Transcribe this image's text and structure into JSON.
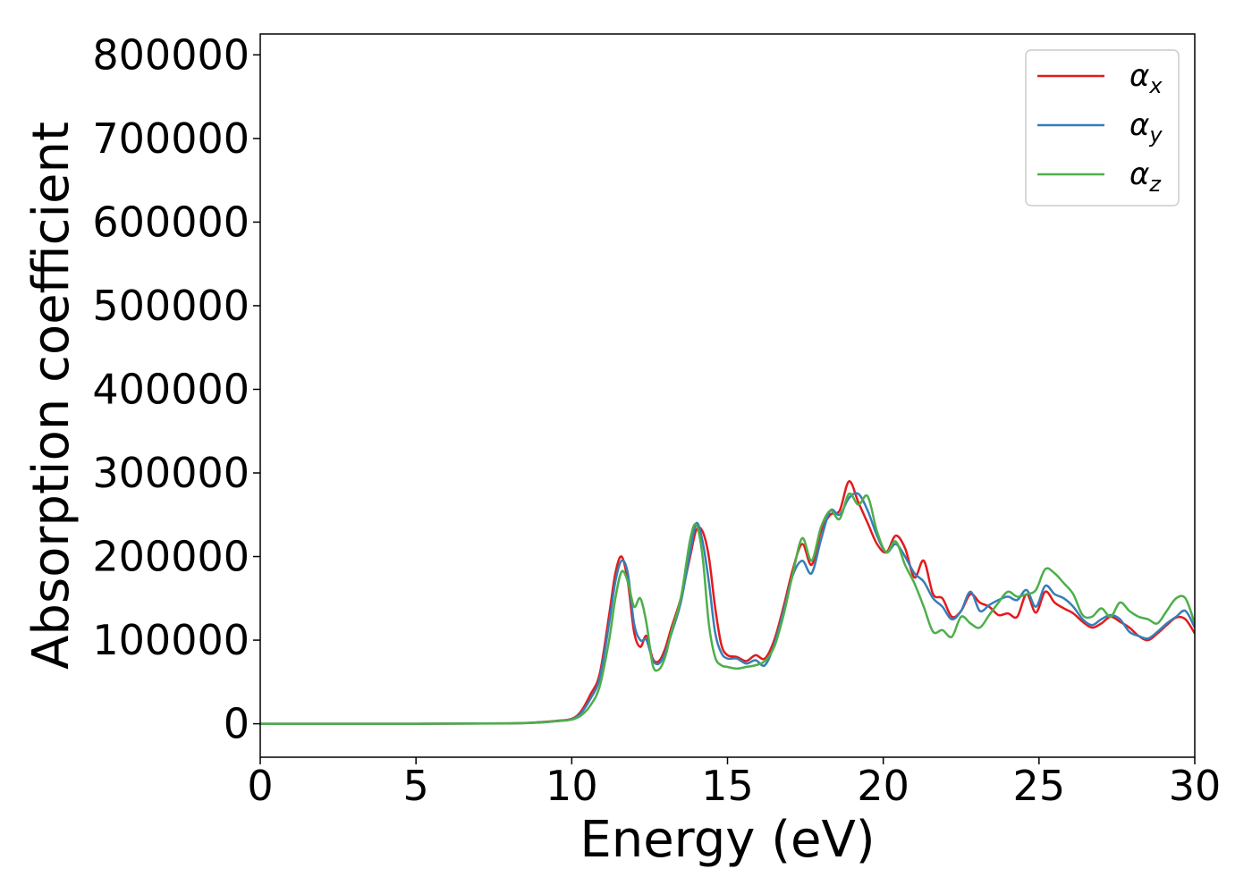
{
  "chart_data": {
    "type": "line",
    "xlabel": "Energy (eV)",
    "ylabel": "Absorption coefficient",
    "xlim": [
      0,
      30
    ],
    "ylim": [
      -40000,
      825000
    ],
    "xticks": [
      0,
      5,
      10,
      15,
      20,
      25,
      30
    ],
    "yticks": [
      0,
      100000,
      200000,
      300000,
      400000,
      500000,
      600000,
      700000,
      800000
    ],
    "legend": {
      "position": "top-right"
    },
    "grid": false,
    "series": [
      {
        "name": "αx",
        "symbol": "α",
        "subscript": "x",
        "color": "#e41a1c",
        "x": [
          0,
          5,
          8,
          9,
          9.5,
          10,
          10.3,
          10.6,
          10.9,
          11.2,
          11.4,
          11.6,
          11.8,
          12.0,
          12.2,
          12.4,
          12.6,
          12.8,
          13.0,
          13.2,
          13.5,
          13.8,
          14.0,
          14.2,
          14.4,
          14.6,
          14.8,
          15.0,
          15.3,
          15.6,
          15.9,
          16.2,
          16.5,
          16.8,
          17.1,
          17.4,
          17.7,
          18.0,
          18.3,
          18.6,
          18.9,
          19.2,
          19.5,
          19.8,
          20.1,
          20.4,
          20.7,
          21.0,
          21.3,
          21.6,
          21.9,
          22.2,
          22.5,
          22.8,
          23.1,
          23.4,
          23.7,
          24.0,
          24.3,
          24.6,
          24.9,
          25.2,
          25.5,
          25.8,
          26.1,
          26.4,
          26.7,
          27.0,
          27.3,
          27.6,
          27.9,
          28.2,
          28.5,
          28.8,
          29.1,
          29.4,
          29.7,
          30.0
        ],
        "values": [
          0,
          0,
          500,
          2000,
          3500,
          6000,
          15000,
          35000,
          60000,
          130000,
          180000,
          200000,
          170000,
          110000,
          92000,
          105000,
          78000,
          75000,
          90000,
          115000,
          150000,
          200000,
          232000,
          230000,
          200000,
          140000,
          95000,
          82000,
          80000,
          75000,
          82000,
          78000,
          100000,
          140000,
          185000,
          215000,
          190000,
          230000,
          250000,
          255000,
          290000,
          265000,
          240000,
          215000,
          205000,
          225000,
          210000,
          175000,
          195000,
          155000,
          150000,
          128000,
          135000,
          155000,
          145000,
          140000,
          130000,
          132000,
          128000,
          155000,
          133000,
          158000,
          145000,
          138000,
          132000,
          122000,
          115000,
          120000,
          128000,
          122000,
          115000,
          105000,
          100000,
          108000,
          118000,
          127000,
          125000,
          108000
        ]
      },
      {
        "name": "αy",
        "symbol": "α",
        "subscript": "y",
        "color": "#377eb8",
        "x": [
          0,
          5,
          8,
          9,
          9.5,
          10,
          10.3,
          10.6,
          10.9,
          11.2,
          11.4,
          11.6,
          11.8,
          12.0,
          12.2,
          12.4,
          12.6,
          12.8,
          13.0,
          13.2,
          13.5,
          13.8,
          14.0,
          14.2,
          14.4,
          14.6,
          14.8,
          15.0,
          15.3,
          15.6,
          15.9,
          16.2,
          16.5,
          16.8,
          17.1,
          17.4,
          17.7,
          18.0,
          18.3,
          18.6,
          18.9,
          19.2,
          19.5,
          19.8,
          20.1,
          20.4,
          20.7,
          21.0,
          21.3,
          21.6,
          21.9,
          22.2,
          22.5,
          22.8,
          23.1,
          23.4,
          23.7,
          24.0,
          24.3,
          24.6,
          24.9,
          25.2,
          25.5,
          25.8,
          26.1,
          26.4,
          26.7,
          27.0,
          27.3,
          27.6,
          27.9,
          28.2,
          28.5,
          28.8,
          29.1,
          29.4,
          29.7,
          30.0
        ],
        "values": [
          0,
          0,
          500,
          1800,
          3200,
          5500,
          13000,
          30000,
          55000,
          120000,
          170000,
          195000,
          180000,
          120000,
          100000,
          100000,
          76000,
          72000,
          85000,
          108000,
          145000,
          205000,
          240000,
          218000,
          170000,
          110000,
          85000,
          78000,
          78000,
          72000,
          76000,
          70000,
          95000,
          135000,
          178000,
          195000,
          180000,
          220000,
          255000,
          250000,
          270000,
          275000,
          255000,
          225000,
          205000,
          215000,
          200000,
          180000,
          170000,
          150000,
          140000,
          125000,
          135000,
          158000,
          135000,
          142000,
          148000,
          152000,
          148000,
          160000,
          140000,
          165000,
          155000,
          150000,
          140000,
          125000,
          118000,
          125000,
          130000,
          125000,
          110000,
          105000,
          102000,
          110000,
          120000,
          128000,
          135000,
          115000
        ]
      },
      {
        "name": "αz",
        "symbol": "α",
        "subscript": "z",
        "color": "#4daf4a",
        "x": [
          0,
          5,
          8,
          9,
          9.5,
          10,
          10.3,
          10.6,
          10.9,
          11.2,
          11.4,
          11.6,
          11.8,
          12.0,
          12.2,
          12.4,
          12.6,
          12.8,
          13.0,
          13.2,
          13.5,
          13.8,
          14.0,
          14.2,
          14.4,
          14.6,
          14.8,
          15.0,
          15.3,
          15.6,
          15.9,
          16.2,
          16.5,
          16.8,
          17.1,
          17.4,
          17.7,
          18.0,
          18.3,
          18.6,
          18.9,
          19.2,
          19.5,
          19.8,
          20.1,
          20.4,
          20.7,
          21.0,
          21.3,
          21.6,
          21.9,
          22.2,
          22.5,
          22.8,
          23.1,
          23.4,
          23.7,
          24.0,
          24.3,
          24.6,
          24.9,
          25.2,
          25.5,
          25.8,
          26.1,
          26.4,
          26.7,
          27.0,
          27.3,
          27.6,
          27.9,
          28.2,
          28.5,
          28.8,
          29.1,
          29.4,
          29.7,
          30.0
        ],
        "values": [
          0,
          0,
          400,
          1500,
          3000,
          5000,
          10000,
          22000,
          45000,
          100000,
          150000,
          182000,
          170000,
          140000,
          150000,
          120000,
          70000,
          65000,
          80000,
          110000,
          150000,
          220000,
          238000,
          200000,
          120000,
          80000,
          70000,
          68000,
          66000,
          68000,
          70000,
          75000,
          92000,
          130000,
          180000,
          222000,
          195000,
          235000,
          255000,
          245000,
          275000,
          262000,
          272000,
          230000,
          205000,
          218000,
          190000,
          168000,
          140000,
          110000,
          112000,
          104000,
          128000,
          120000,
          115000,
          130000,
          145000,
          158000,
          152000,
          155000,
          160000,
          185000,
          180000,
          168000,
          155000,
          130000,
          128000,
          138000,
          128000,
          145000,
          135000,
          128000,
          125000,
          120000,
          135000,
          150000,
          150000,
          120000
        ]
      }
    ]
  }
}
